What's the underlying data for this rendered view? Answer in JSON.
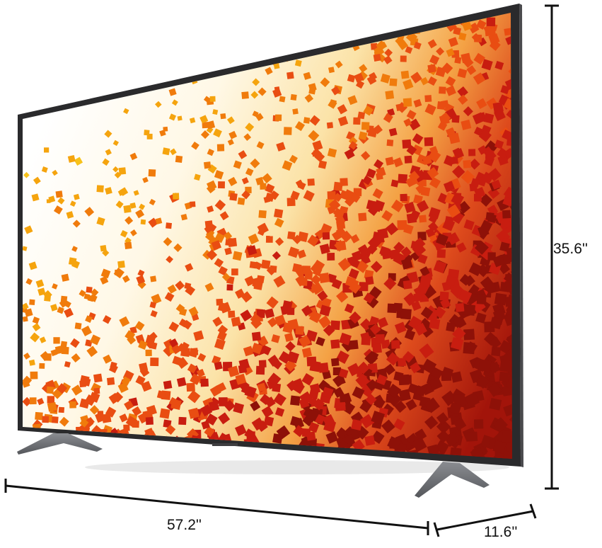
{
  "dimensions": {
    "height": "35.6''",
    "width": "57.2''",
    "depth": "11.6''"
  },
  "colors": {
    "frame": "#2a2a2c",
    "stand": "#6e7075",
    "background": "#ffffff",
    "cube_palette": [
      "#f7c21b",
      "#f5a40e",
      "#f07b0c",
      "#e94d12",
      "#c81d10",
      "#8e1108"
    ]
  }
}
